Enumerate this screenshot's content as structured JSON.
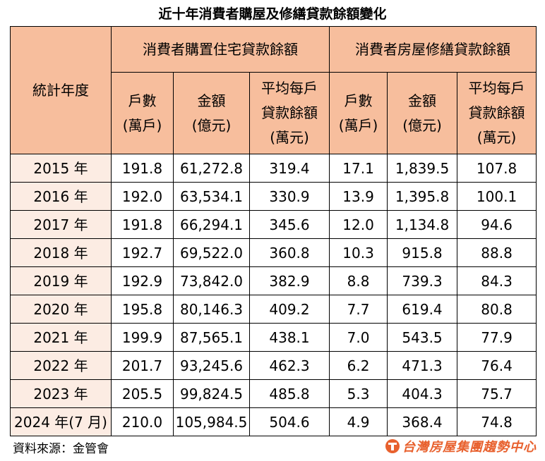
{
  "title": "近十年消費者購屋及修繕貸款餘額變化",
  "header": {
    "year_col": "統計年度",
    "group_home": "消費者購置住宅貸款餘額",
    "group_repair": "消費者房屋修繕貸款餘額",
    "households": [
      "戶數",
      "(萬戶)"
    ],
    "amount": [
      "金額",
      "(億元)"
    ],
    "avg": [
      "平均每戶",
      "貸款餘額",
      "(萬元)"
    ]
  },
  "rows": [
    {
      "year": "2015 年",
      "h_households": "191.8",
      "h_amount": "61,272.8",
      "h_avg": "319.4",
      "r_households": "17.1",
      "r_amount": "1,839.5",
      "r_avg": "107.8"
    },
    {
      "year": "2016 年",
      "h_households": "192.0",
      "h_amount": "63,534.1",
      "h_avg": "330.9",
      "r_households": "13.9",
      "r_amount": "1,395.8",
      "r_avg": "100.1"
    },
    {
      "year": "2017 年",
      "h_households": "191.8",
      "h_amount": "66,294.1",
      "h_avg": "345.6",
      "r_households": "12.0",
      "r_amount": "1,134.8",
      "r_avg": "94.6"
    },
    {
      "year": "2018 年",
      "h_households": "192.7",
      "h_amount": "69,522.0",
      "h_avg": "360.8",
      "r_households": "10.3",
      "r_amount": "915.8",
      "r_avg": "88.8"
    },
    {
      "year": "2019 年",
      "h_households": "192.9",
      "h_amount": "73,842.0",
      "h_avg": "382.9",
      "r_households": "8.8",
      "r_amount": "739.3",
      "r_avg": "84.3"
    },
    {
      "year": "2020 年",
      "h_households": "195.8",
      "h_amount": "80,146.3",
      "h_avg": "409.2",
      "r_households": "7.7",
      "r_amount": "619.4",
      "r_avg": "80.8"
    },
    {
      "year": "2021 年",
      "h_households": "199.9",
      "h_amount": "87,565.1",
      "h_avg": "438.1",
      "r_households": "7.0",
      "r_amount": "543.5",
      "r_avg": "77.9"
    },
    {
      "year": "2022 年",
      "h_households": "201.7",
      "h_amount": "93,245.6",
      "h_avg": "462.3",
      "r_households": "6.2",
      "r_amount": "471.3",
      "r_avg": "76.4"
    },
    {
      "year": "2023 年",
      "h_households": "205.5",
      "h_amount": "99,824.5",
      "h_avg": "485.8",
      "r_households": "5.3",
      "r_amount": "404.3",
      "r_avg": "75.7"
    },
    {
      "year": "2024 年(7 月)",
      "h_households": "210.0",
      "h_amount": "105,984.5",
      "h_avg": "504.6",
      "r_households": "4.9",
      "r_amount": "368.4",
      "r_avg": "74.8"
    }
  ],
  "source": "資料來源：金管會",
  "brand": {
    "name": "台灣房屋集團趨勢中心",
    "color": "#e8612e"
  }
}
